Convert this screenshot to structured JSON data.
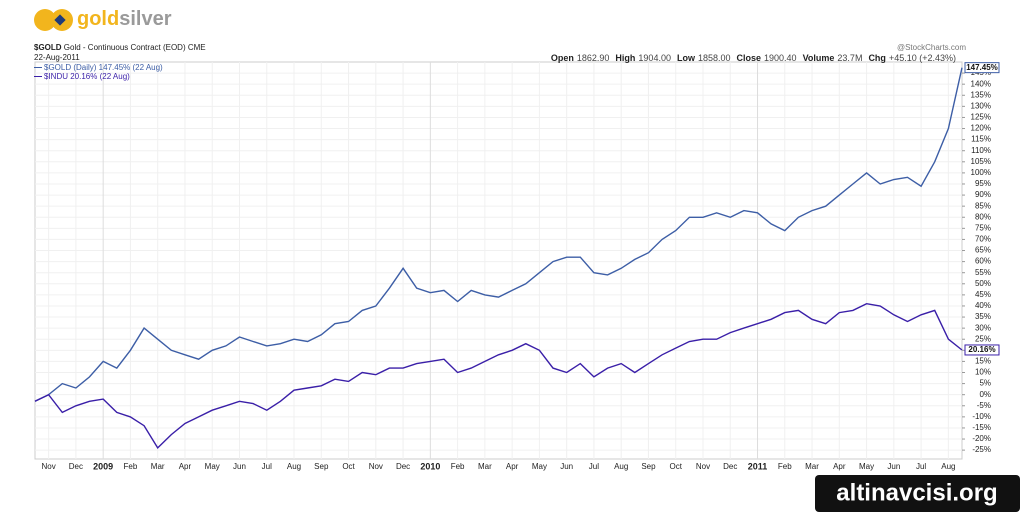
{
  "logo": [
    "gold",
    "silver"
  ],
  "header": {
    "symbol": "$GOLD",
    "description": "Gold - Continuous Contract (EOD)",
    "exchange": "CME",
    "date": "22-Aug-2011",
    "source": "@StockCharts.com",
    "stats": [
      {
        "name": "Open",
        "value": "1862.90"
      },
      {
        "name": "High",
        "value": "1904.00"
      },
      {
        "name": "Low",
        "value": "1858.00"
      },
      {
        "name": "Close",
        "value": "1900.40"
      },
      {
        "name": "Volume",
        "value": "23.7M"
      },
      {
        "name": "Chg",
        "value": "+45.10 (+2.43%)"
      }
    ]
  },
  "watermark": "altinavcisi.org",
  "chart_data": {
    "type": "line",
    "categories": [
      null,
      "Nov",
      null,
      "Dec",
      null,
      "2009",
      null,
      "Feb",
      null,
      "Mar",
      null,
      "Apr",
      null,
      "May",
      null,
      "Jun",
      null,
      "Jul",
      null,
      "Aug",
      null,
      "Sep",
      null,
      "Oct",
      null,
      "Nov",
      null,
      "Dec",
      null,
      "2010",
      null,
      "Feb",
      null,
      "Mar",
      null,
      "Apr",
      null,
      "May",
      null,
      "Jun",
      null,
      "Jul",
      null,
      "Aug",
      null,
      "Sep",
      null,
      "Oct",
      null,
      "Nov",
      null,
      "Dec",
      null,
      "2011",
      null,
      "Feb",
      null,
      "Mar",
      null,
      "Apr",
      null,
      "May",
      null,
      "Jun",
      null,
      "Jul",
      null,
      "Aug",
      null
    ],
    "series": [
      {
        "name": "$GOLD (Daily) 147.45% (22 Aug)",
        "color": "#3d5ea6",
        "last_label": "147.45%",
        "values": [
          -3,
          0,
          5,
          3,
          8,
          15,
          12,
          20,
          30,
          25,
          20,
          18,
          16,
          20,
          22,
          26,
          24,
          22,
          23,
          25,
          24,
          27,
          32,
          33,
          38,
          40,
          48,
          57,
          48,
          46,
          47,
          42,
          47,
          45,
          44,
          47,
          50,
          55,
          60,
          62,
          62,
          55,
          54,
          57,
          61,
          64,
          70,
          74,
          80,
          80,
          82,
          80,
          83,
          82,
          77,
          74,
          80,
          83,
          85,
          90,
          95,
          100,
          95,
          97,
          98,
          94,
          105,
          120,
          147.45
        ]
      },
      {
        "name": "$INDU 20.16% (22 Aug)",
        "color": "#3a1fa8",
        "last_label": "20.16%",
        "values": [
          -3,
          0,
          -8,
          -5,
          -3,
          -2,
          -8,
          -10,
          -14,
          -24,
          -18,
          -13,
          -10,
          -7,
          -5,
          -3,
          -4,
          -7,
          -3,
          2,
          3,
          4,
          7,
          6,
          10,
          9,
          12,
          12,
          14,
          15,
          16,
          10,
          12,
          15,
          18,
          20,
          23,
          20,
          12,
          10,
          14,
          8,
          12,
          14,
          10,
          14,
          18,
          21,
          24,
          25,
          25,
          28,
          30,
          32,
          34,
          37,
          38,
          34,
          32,
          37,
          38,
          41,
          40,
          36,
          33,
          36,
          38,
          25,
          20.16
        ]
      }
    ],
    "ylim": [
      -29,
      150
    ],
    "yticks": [
      {
        "value": -25,
        "label": "-25%"
      },
      {
        "value": -20,
        "label": "-20%"
      },
      {
        "value": -15,
        "label": "-15%"
      },
      {
        "value": -10,
        "label": "-10%"
      },
      {
        "value": -5,
        "label": "-5%"
      },
      {
        "value": 0,
        "label": "0%"
      },
      {
        "value": 5,
        "label": "5%"
      },
      {
        "value": 10,
        "label": "10%"
      },
      {
        "value": 15,
        "label": "15%"
      },
      {
        "value": 20,
        "label": "20%"
      },
      {
        "value": 25,
        "label": "25%"
      },
      {
        "value": 30,
        "label": "30%"
      },
      {
        "value": 35,
        "label": "35%"
      },
      {
        "value": 40,
        "label": "40%"
      },
      {
        "value": 45,
        "label": "45%"
      },
      {
        "value": 50,
        "label": "50%"
      },
      {
        "value": 55,
        "label": "55%"
      },
      {
        "value": 60,
        "label": "60%"
      },
      {
        "value": 65,
        "label": "65%"
      },
      {
        "value": 70,
        "label": "70%"
      },
      {
        "value": 75,
        "label": "75%"
      },
      {
        "value": 80,
        "label": "80%"
      },
      {
        "value": 85,
        "label": "85%"
      },
      {
        "value": 90,
        "label": "90%"
      },
      {
        "value": 95,
        "label": "95%"
      },
      {
        "value": 100,
        "label": "100%"
      },
      {
        "value": 105,
        "label": "105%"
      },
      {
        "value": 110,
        "label": "110%"
      },
      {
        "value": 115,
        "label": "115%"
      },
      {
        "value": 120,
        "label": "120%"
      },
      {
        "value": 125,
        "label": "125%"
      },
      {
        "value": 130,
        "label": "130%"
      },
      {
        "value": 135,
        "label": "135%"
      },
      {
        "value": 140,
        "label": "140%"
      },
      {
        "value": 145,
        "label": "145%"
      }
    ],
    "grid": true
  }
}
